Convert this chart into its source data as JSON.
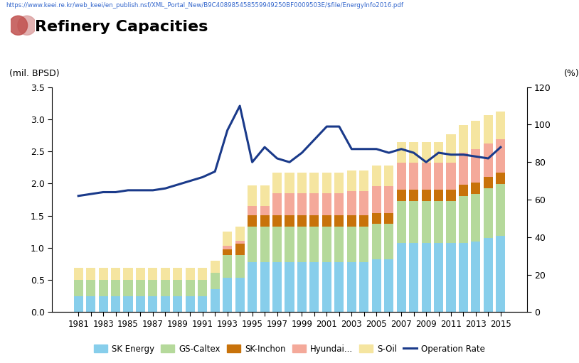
{
  "years": [
    1981,
    1982,
    1983,
    1984,
    1985,
    1986,
    1987,
    1988,
    1989,
    1990,
    1991,
    1992,
    1993,
    1994,
    1995,
    1996,
    1997,
    1998,
    1999,
    2000,
    2001,
    2002,
    2003,
    2004,
    2005,
    2006,
    2007,
    2008,
    2009,
    2010,
    2011,
    2012,
    2013,
    2014,
    2015
  ],
  "SK_Energy": [
    0.245,
    0.245,
    0.245,
    0.245,
    0.245,
    0.245,
    0.245,
    0.245,
    0.245,
    0.245,
    0.245,
    0.36,
    0.54,
    0.54,
    0.78,
    0.78,
    0.78,
    0.78,
    0.78,
    0.78,
    0.78,
    0.78,
    0.78,
    0.78,
    0.82,
    0.82,
    1.08,
    1.08,
    1.08,
    1.08,
    1.08,
    1.08,
    1.1,
    1.15,
    1.19
  ],
  "GS_Caltex": [
    0.255,
    0.255,
    0.255,
    0.255,
    0.255,
    0.255,
    0.255,
    0.255,
    0.255,
    0.255,
    0.255,
    0.255,
    0.35,
    0.35,
    0.55,
    0.55,
    0.55,
    0.55,
    0.55,
    0.55,
    0.55,
    0.55,
    0.55,
    0.55,
    0.55,
    0.55,
    0.65,
    0.65,
    0.65,
    0.65,
    0.65,
    0.73,
    0.74,
    0.78,
    0.8
  ],
  "SK_Inchon": [
    0.0,
    0.0,
    0.0,
    0.0,
    0.0,
    0.0,
    0.0,
    0.0,
    0.0,
    0.0,
    0.0,
    0.0,
    0.09,
    0.175,
    0.175,
    0.175,
    0.175,
    0.175,
    0.175,
    0.175,
    0.175,
    0.175,
    0.175,
    0.175,
    0.175,
    0.175,
    0.175,
    0.175,
    0.175,
    0.175,
    0.175,
    0.175,
    0.175,
    0.175,
    0.175
  ],
  "Hyundai": [
    0.0,
    0.0,
    0.0,
    0.0,
    0.0,
    0.0,
    0.0,
    0.0,
    0.0,
    0.0,
    0.0,
    0.0,
    0.05,
    0.05,
    0.15,
    0.15,
    0.35,
    0.35,
    0.35,
    0.35,
    0.35,
    0.35,
    0.38,
    0.38,
    0.42,
    0.42,
    0.42,
    0.42,
    0.42,
    0.42,
    0.42,
    0.49,
    0.52,
    0.52,
    0.52
  ],
  "S_Oil": [
    0.19,
    0.19,
    0.19,
    0.19,
    0.19,
    0.19,
    0.19,
    0.19,
    0.19,
    0.19,
    0.19,
    0.19,
    0.22,
    0.22,
    0.32,
    0.32,
    0.32,
    0.32,
    0.32,
    0.32,
    0.32,
    0.32,
    0.32,
    0.32,
    0.32,
    0.32,
    0.32,
    0.32,
    0.32,
    0.32,
    0.44,
    0.44,
    0.44,
    0.44,
    0.44
  ],
  "operation_rate": [
    62,
    63,
    64,
    64,
    65,
    65,
    65,
    66,
    68,
    70,
    72,
    75,
    97,
    110,
    80,
    88,
    82,
    80,
    85,
    92,
    99,
    99,
    87,
    87,
    87,
    85,
    87,
    85,
    80,
    85,
    84,
    84,
    83,
    82,
    88
  ],
  "colors": {
    "SK_Energy": "#87CEEB",
    "GS_Caltex": "#b5d99b",
    "SK_Inchon": "#c8720a",
    "Hyundai": "#f4a99a",
    "S_Oil": "#f5e5a0",
    "operation_rate": "#1a3a8a"
  },
  "title": "Refinery Capacities",
  "left_label": "(mil. BPSD)",
  "right_label": "(%)",
  "ylim_left": [
    0,
    3.5
  ],
  "ylim_right": [
    0,
    120
  ],
  "yticks_left": [
    0.0,
    0.5,
    1.0,
    1.5,
    2.0,
    2.5,
    3.0,
    3.5
  ],
  "yticks_right": [
    0,
    20,
    40,
    60,
    80,
    100,
    120
  ],
  "legend_labels": [
    "SK Energy",
    "GS-Caltex",
    "SK-Inchon",
    "Hyundai...",
    "S-Oil",
    "Operation Rate"
  ],
  "url": "https://www.keei.re.kr/web_keei/en_publish.nsf/XML_Portal_New/B9C408985458559949250BF0009503E/$file/EnergyInfo2016.pdf"
}
